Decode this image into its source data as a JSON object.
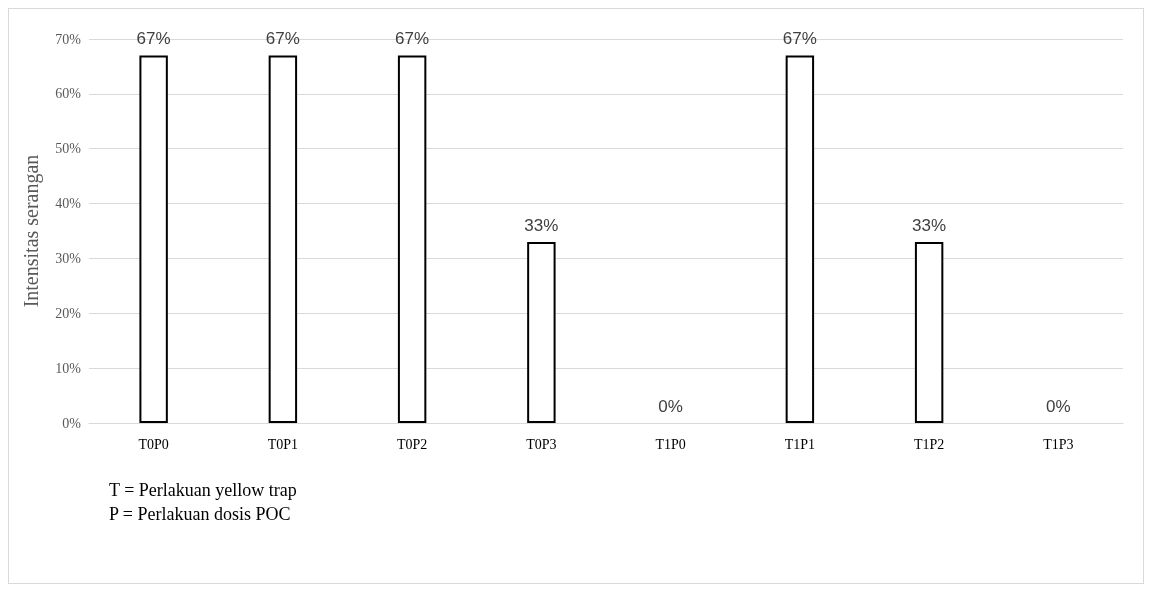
{
  "chart_data": {
    "type": "bar",
    "ylabel": "Intensitas serangan",
    "categories": [
      "T0P0",
      "T0P1",
      "T0P2",
      "T0P3",
      "T1P0",
      "T1P1",
      "T1P2",
      "T1P3"
    ],
    "values": [
      67,
      67,
      67,
      33,
      0,
      67,
      33,
      0
    ],
    "value_labels": [
      "67%",
      "67%",
      "67%",
      "33%",
      "0%",
      "67%",
      "33%",
      "0%"
    ],
    "color": "#ffffff",
    "ylim": [
      0,
      70
    ],
    "yticks": [
      {
        "value": 0,
        "label": "0%"
      },
      {
        "value": 10,
        "label": "10%"
      },
      {
        "value": 20,
        "label": "20%"
      },
      {
        "value": 30,
        "label": "30%"
      },
      {
        "value": 40,
        "label": "40%"
      },
      {
        "value": 50,
        "label": "50%"
      },
      {
        "value": 60,
        "label": "60%"
      },
      {
        "value": 70,
        "label": "70%"
      }
    ],
    "grid": "y",
    "annotations": [
      "T = Perlakuan yellow trap",
      "P = Perlakuan dosis POC"
    ]
  }
}
